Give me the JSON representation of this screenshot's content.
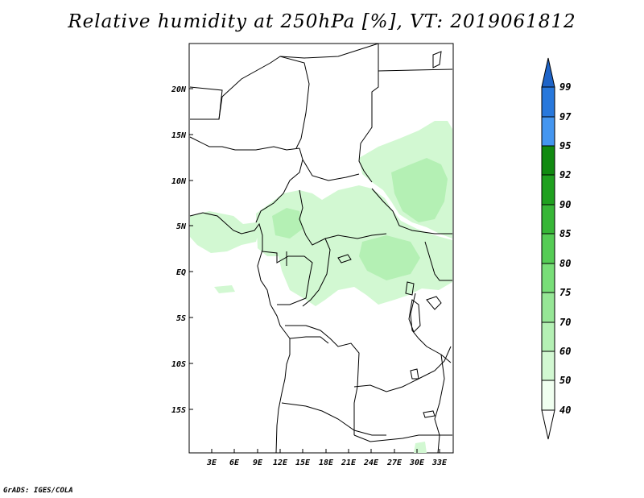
{
  "title": "Relative humidity at 250hPa [%], VT: 2019061812",
  "credit": "GrADS: IGES/COLA",
  "map": {
    "lat_labels": [
      "20N",
      "15N",
      "10N",
      "5N",
      "EQ",
      "5S",
      "10S",
      "15S"
    ],
    "lon_labels": [
      "3E",
      "6E",
      "9E",
      "12E",
      "15E",
      "18E",
      "21E",
      "24E",
      "27E",
      "30E",
      "33E"
    ]
  },
  "colorbar": {
    "levels": [
      "99",
      "97",
      "95",
      "92",
      "90",
      "85",
      "80",
      "75",
      "70",
      "60",
      "50",
      "40"
    ],
    "colors": {
      "top_arrow": "#1e64c8",
      "97_99": "#2878dc",
      "95_97": "#4496f0",
      "92_95": "#118a11",
      "90_92": "#1fa01f",
      "85_90": "#37b637",
      "80_85": "#55cc55",
      "75_80": "#78de78",
      "70_75": "#96e696",
      "60_70": "#b4f0b4",
      "50_60": "#d2f8d2",
      "40_50": "#f0fff0",
      "bottom_arrow": "#ffffff"
    }
  }
}
